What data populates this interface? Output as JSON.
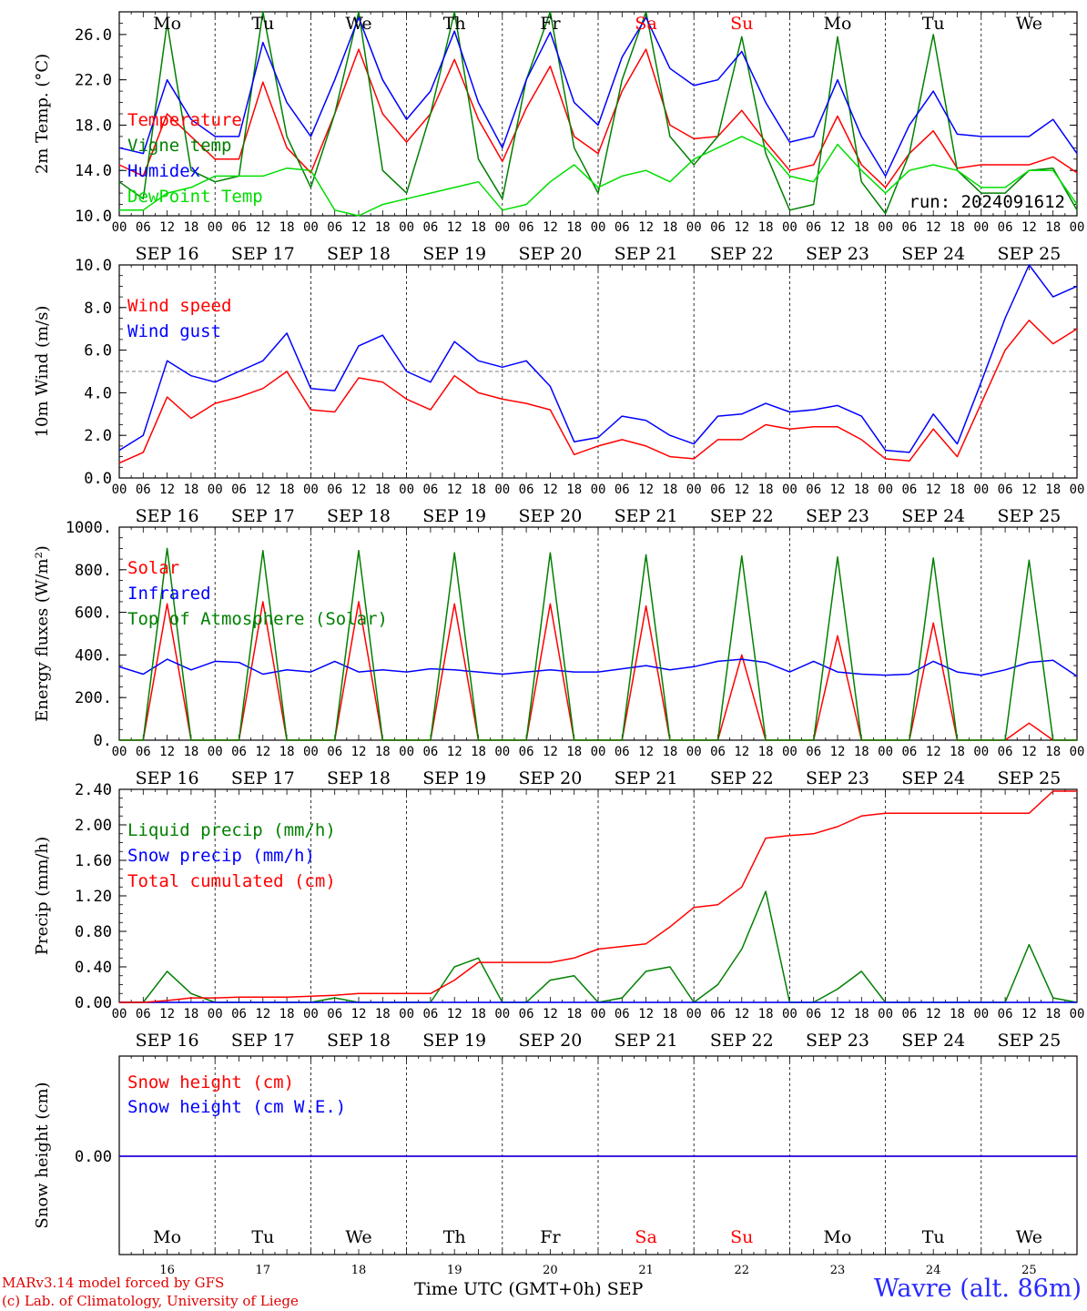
{
  "colors": {
    "red": "#ff0000",
    "green": "#008000",
    "blue": "#0000ff",
    "lightgreen": "#00dd00",
    "weekend": "#ff0000"
  },
  "days": [
    "Mo",
    "Tu",
    "We",
    "Th",
    "Fr",
    "Sa",
    "Su",
    "Mo",
    "Tu",
    "We"
  ],
  "weekend_days": [
    "Sa",
    "Su"
  ],
  "date_labels": [
    "SEP 16",
    "SEP 17",
    "SEP 18",
    "SEP 19",
    "SEP 20",
    "SEP 21",
    "SEP 22",
    "SEP 23",
    "SEP 24",
    "SEP 25"
  ],
  "hour_ticks": [
    "00",
    "06",
    "12",
    "18"
  ],
  "day_numbers": [
    "16",
    "17",
    "18",
    "19",
    "20",
    "21",
    "22",
    "23",
    "24",
    "25"
  ],
  "run_label": "run: 2024091612",
  "footer": {
    "model": "MARv3.14 model forced by GFS",
    "copyright": "(c) Lab. of Climatology, University of Liege",
    "axis_title": "Time UTC (GMT+0h) SEP",
    "station": "Wavre (alt. 86m)"
  },
  "chart_data": [
    {
      "type": "line",
      "ylabel": "2m Temp. (°C)",
      "ylim": [
        10,
        28
      ],
      "yticks": [
        "10.0",
        "14.0",
        "18.0",
        "22.0",
        "26.0"
      ],
      "ytick_values": [
        10,
        14,
        18,
        22,
        26
      ],
      "grid": "vertical dashed at 00 UTC",
      "legend": "left",
      "x_days": [
        0,
        0.25,
        0.5,
        0.75,
        1,
        1.25,
        1.5,
        1.75,
        2,
        2.25,
        2.5,
        2.75,
        3,
        3.25,
        3.5,
        3.75,
        4,
        4.25,
        4.5,
        4.75,
        5,
        5.25,
        5.5,
        5.75,
        6,
        6.25,
        6.5,
        6.75,
        7,
        7.25,
        7.5,
        7.75,
        8,
        8.25,
        8.5,
        8.75,
        9,
        9.25,
        9.5,
        9.75,
        10
      ],
      "series": [
        {
          "name": "Temperature",
          "color": "#ff0000",
          "values": [
            14.5,
            13.5,
            19.0,
            17.0,
            15.0,
            15.0,
            21.8,
            16.0,
            13.8,
            19.0,
            24.7,
            19.0,
            16.5,
            19.0,
            23.8,
            18.5,
            14.8,
            19.5,
            23.2,
            17.0,
            15.5,
            21.0,
            24.7,
            18.0,
            16.8,
            17.0,
            19.3,
            16.5,
            14.0,
            14.5,
            18.8,
            14.5,
            12.5,
            15.5,
            17.5,
            14.2,
            14.5,
            14.5,
            14.5,
            15.2,
            13.8
          ]
        },
        {
          "name": "Vigne temp",
          "color": "#008000",
          "values": [
            13.0,
            11.5,
            27.0,
            14.0,
            13.0,
            13.5,
            28.0,
            17.0,
            12.5,
            19.0,
            28.0,
            14.0,
            12.0,
            19.0,
            28.0,
            15.0,
            11.5,
            22.0,
            28.0,
            16.0,
            12.0,
            22.0,
            28.0,
            17.0,
            14.5,
            17.0,
            25.8,
            15.5,
            10.5,
            11.0,
            25.8,
            13.0,
            10.2,
            15.5,
            26.0,
            14.0,
            12.0,
            12.0,
            14.0,
            14.2,
            10.5
          ]
        },
        {
          "name": "Humidex",
          "color": "#0000ff",
          "values": [
            16.0,
            15.5,
            22.0,
            18.5,
            17.0,
            17.0,
            25.3,
            20.0,
            17.0,
            22.0,
            27.5,
            22.0,
            18.5,
            21.0,
            26.3,
            20.0,
            16.0,
            22.0,
            26.2,
            20.0,
            18.0,
            24.0,
            27.5,
            23.0,
            21.5,
            22.0,
            24.5,
            20.0,
            16.5,
            17.0,
            22.0,
            17.0,
            13.5,
            18.0,
            21.0,
            17.2,
            17.0,
            17.0,
            17.0,
            18.5,
            15.5
          ]
        },
        {
          "name": "DewPoint Temp",
          "color": "#00dd00",
          "values": [
            10.5,
            10.5,
            12.0,
            12.5,
            13.5,
            13.5,
            13.5,
            14.2,
            14.0,
            10.5,
            10.0,
            11.0,
            11.5,
            12.0,
            12.5,
            13.0,
            10.5,
            11.0,
            13.0,
            14.5,
            12.5,
            13.5,
            14.0,
            13.0,
            15.0,
            16.0,
            17.0,
            16.0,
            13.5,
            13.0,
            16.3,
            14.0,
            12.0,
            14.0,
            14.5,
            14.0,
            12.5,
            12.5,
            14.0,
            14.0,
            11.0
          ]
        }
      ]
    },
    {
      "type": "line",
      "ylabel": "10m Wind (m/s)",
      "ylim": [
        0,
        10
      ],
      "yticks": [
        "0.0",
        "2.0",
        "4.0",
        "6.0",
        "8.0",
        "10.0"
      ],
      "ytick_values": [
        0,
        2,
        4,
        6,
        8,
        10
      ],
      "reference_line": 5,
      "legend": "left",
      "x_days": [
        0,
        0.25,
        0.5,
        0.75,
        1,
        1.25,
        1.5,
        1.75,
        2,
        2.25,
        2.5,
        2.75,
        3,
        3.25,
        3.5,
        3.75,
        4,
        4.25,
        4.5,
        4.75,
        5,
        5.25,
        5.5,
        5.75,
        6,
        6.25,
        6.5,
        6.75,
        7,
        7.25,
        7.5,
        7.75,
        8,
        8.25,
        8.5,
        8.75,
        9,
        9.25,
        9.5,
        9.75,
        10
      ],
      "series": [
        {
          "name": "Wind speed",
          "color": "#ff0000",
          "values": [
            0.7,
            1.2,
            3.8,
            2.8,
            3.5,
            3.8,
            4.2,
            5.0,
            3.2,
            3.1,
            4.7,
            4.5,
            3.7,
            3.2,
            4.8,
            4.0,
            3.7,
            3.5,
            3.2,
            1.1,
            1.5,
            1.8,
            1.5,
            1.0,
            0.9,
            1.8,
            1.8,
            2.5,
            2.3,
            2.4,
            2.4,
            1.8,
            0.9,
            0.8,
            2.3,
            1.0,
            3.5,
            6.0,
            7.4,
            6.3,
            7.0
          ]
        },
        {
          "name": "Wind gust",
          "color": "#0000ff",
          "values": [
            1.3,
            2.0,
            5.5,
            4.8,
            4.5,
            5.0,
            5.5,
            6.8,
            4.2,
            4.1,
            6.2,
            6.7,
            5.0,
            4.5,
            6.4,
            5.5,
            5.2,
            5.5,
            4.3,
            1.7,
            1.9,
            2.9,
            2.7,
            2.0,
            1.6,
            2.9,
            3.0,
            3.5,
            3.1,
            3.2,
            3.4,
            2.9,
            1.3,
            1.2,
            3.0,
            1.6,
            4.5,
            7.5,
            10.0,
            8.5,
            9.0
          ]
        }
      ]
    },
    {
      "type": "line",
      "ylabel": "Energy fluxes (W/m²)",
      "ylim": [
        0,
        1000
      ],
      "yticks": [
        "0.",
        "200.",
        "400.",
        "600.",
        "800.",
        "1000."
      ],
      "ytick_values": [
        0,
        200,
        400,
        600,
        800,
        1000
      ],
      "legend": "left",
      "x_days": [
        0,
        0.25,
        0.5,
        0.75,
        1,
        1.25,
        1.5,
        1.75,
        2,
        2.25,
        2.5,
        2.75,
        3,
        3.25,
        3.5,
        3.75,
        4,
        4.25,
        4.5,
        4.75,
        5,
        5.25,
        5.5,
        5.75,
        6,
        6.25,
        6.5,
        6.75,
        7,
        7.25,
        7.5,
        7.75,
        8,
        8.25,
        8.5,
        8.75,
        9,
        9.25,
        9.5,
        9.75,
        10
      ],
      "series": [
        {
          "name": "Solar",
          "color": "#ff0000",
          "values": [
            0,
            0,
            640,
            0,
            0,
            0,
            650,
            0,
            0,
            0,
            650,
            0,
            0,
            0,
            640,
            0,
            0,
            0,
            640,
            0,
            0,
            0,
            630,
            0,
            0,
            0,
            400,
            0,
            0,
            0,
            490,
            0,
            0,
            0,
            550,
            0,
            0,
            0,
            80,
            0,
            0
          ]
        },
        {
          "name": "Infrared",
          "color": "#0000ff",
          "values": [
            345,
            310,
            380,
            330,
            370,
            365,
            310,
            330,
            320,
            370,
            320,
            330,
            320,
            335,
            330,
            320,
            310,
            320,
            330,
            320,
            320,
            335,
            350,
            330,
            345,
            370,
            380,
            365,
            320,
            370,
            320,
            310,
            305,
            310,
            370,
            320,
            305,
            330,
            365,
            375,
            300
          ]
        },
        {
          "name": "Top of Atmosphere (Solar)",
          "color": "#008000",
          "values": [
            0,
            0,
            900,
            0,
            0,
            0,
            890,
            0,
            0,
            0,
            890,
            0,
            0,
            0,
            880,
            0,
            0,
            0,
            880,
            0,
            0,
            0,
            870,
            0,
            0,
            0,
            865,
            0,
            0,
            0,
            860,
            0,
            0,
            0,
            855,
            0,
            0,
            0,
            845,
            0,
            0
          ]
        }
      ]
    },
    {
      "type": "line",
      "ylabel": "Precip (mm/h)",
      "ylim": [
        0,
        2.4
      ],
      "yticks": [
        "0.00",
        "0.40",
        "0.80",
        "1.20",
        "1.60",
        "2.00",
        "2.40"
      ],
      "ytick_values": [
        0,
        0.4,
        0.8,
        1.2,
        1.6,
        2.0,
        2.4
      ],
      "legend": "left",
      "x_days": [
        0,
        0.25,
        0.5,
        0.75,
        1,
        1.25,
        1.5,
        1.75,
        2,
        2.25,
        2.5,
        2.75,
        3,
        3.25,
        3.5,
        3.75,
        4,
        4.25,
        4.5,
        4.75,
        5,
        5.25,
        5.5,
        5.75,
        6,
        6.25,
        6.5,
        6.75,
        7,
        7.25,
        7.5,
        7.75,
        8,
        8.25,
        8.5,
        8.75,
        9,
        9.25,
        9.5,
        9.75,
        10
      ],
      "series": [
        {
          "name": "Liquid precip (mm/h)",
          "color": "#008000",
          "values": [
            0,
            0,
            0.35,
            0.1,
            0,
            0,
            0,
            0,
            0,
            0.05,
            0,
            0,
            0,
            0,
            0.4,
            0.5,
            0,
            0,
            0.25,
            0.3,
            0,
            0.05,
            0.35,
            0.4,
            0,
            0.2,
            0.6,
            1.25,
            0,
            0,
            0.15,
            0.35,
            0,
            0,
            0,
            0,
            0,
            0,
            0.65,
            0.05,
            0
          ]
        },
        {
          "name": "Snow precip (mm/h)",
          "color": "#0000ff",
          "values": [
            0,
            0,
            0,
            0,
            0,
            0,
            0,
            0,
            0,
            0,
            0,
            0,
            0,
            0,
            0,
            0,
            0,
            0,
            0,
            0,
            0,
            0,
            0,
            0,
            0,
            0,
            0,
            0,
            0,
            0,
            0,
            0,
            0,
            0,
            0,
            0,
            0,
            0,
            0,
            0,
            0
          ]
        },
        {
          "name": "Total cumulated (cm)",
          "color": "#ff0000",
          "values": [
            0,
            0,
            0.02,
            0.05,
            0.05,
            0.06,
            0.06,
            0.06,
            0.07,
            0.08,
            0.1,
            0.1,
            0.1,
            0.1,
            0.25,
            0.45,
            0.45,
            0.45,
            0.45,
            0.5,
            0.6,
            0.63,
            0.66,
            0.85,
            1.07,
            1.1,
            1.3,
            1.85,
            1.88,
            1.9,
            1.98,
            2.1,
            2.13,
            2.13,
            2.13,
            2.13,
            2.13,
            2.13,
            2.13,
            2.38,
            2.38
          ]
        }
      ]
    },
    {
      "type": "line",
      "ylabel": "Snow height (cm)",
      "yticks": [
        "0.00"
      ],
      "ytick_values": [
        0
      ],
      "legend": "left",
      "x_days": [
        0,
        10
      ],
      "series": [
        {
          "name": "Snow height (cm)",
          "color": "#ff0000",
          "values": [
            0,
            0
          ]
        },
        {
          "name": "Snow height (cm W.E.)",
          "color": "#0000ff",
          "values": [
            0,
            0
          ]
        }
      ]
    }
  ]
}
